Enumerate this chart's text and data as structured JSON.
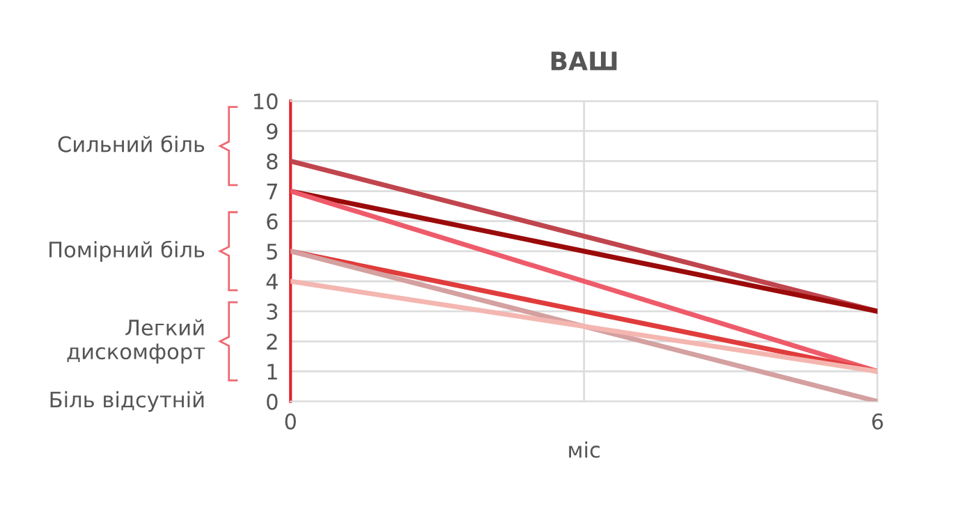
{
  "chart_data": {
    "type": "line",
    "title": "ВАШ",
    "xlabel": "міс",
    "x": [
      0,
      6
    ],
    "series": [
      {
        "color": "#c0454d",
        "values": [
          8,
          3
        ]
      },
      {
        "color": "#9b0a0a",
        "values": [
          7,
          3
        ]
      },
      {
        "color": "#ee5b6a",
        "values": [
          7,
          1
        ]
      },
      {
        "color": "#e03c3c",
        "values": [
          5,
          1
        ]
      },
      {
        "color": "#d4a0a0",
        "values": [
          5,
          0
        ]
      },
      {
        "color": "#f4b6b0",
        "values": [
          4,
          1
        ]
      }
    ],
    "xlim": [
      0,
      6
    ],
    "xticks": [
      0,
      {
        "value": 3,
        "label": null
      },
      6
    ],
    "ylim": [
      0,
      10
    ],
    "yticks": [
      0,
      1,
      2,
      3,
      4,
      5,
      6,
      7,
      8,
      9,
      10
    ],
    "grid": true,
    "marker": "none",
    "line_style": "solid",
    "annotations": [
      "Сильний біль",
      "Помірний біль",
      "Легкий\nдискомфорт",
      "Біль відсутній"
    ]
  }
}
